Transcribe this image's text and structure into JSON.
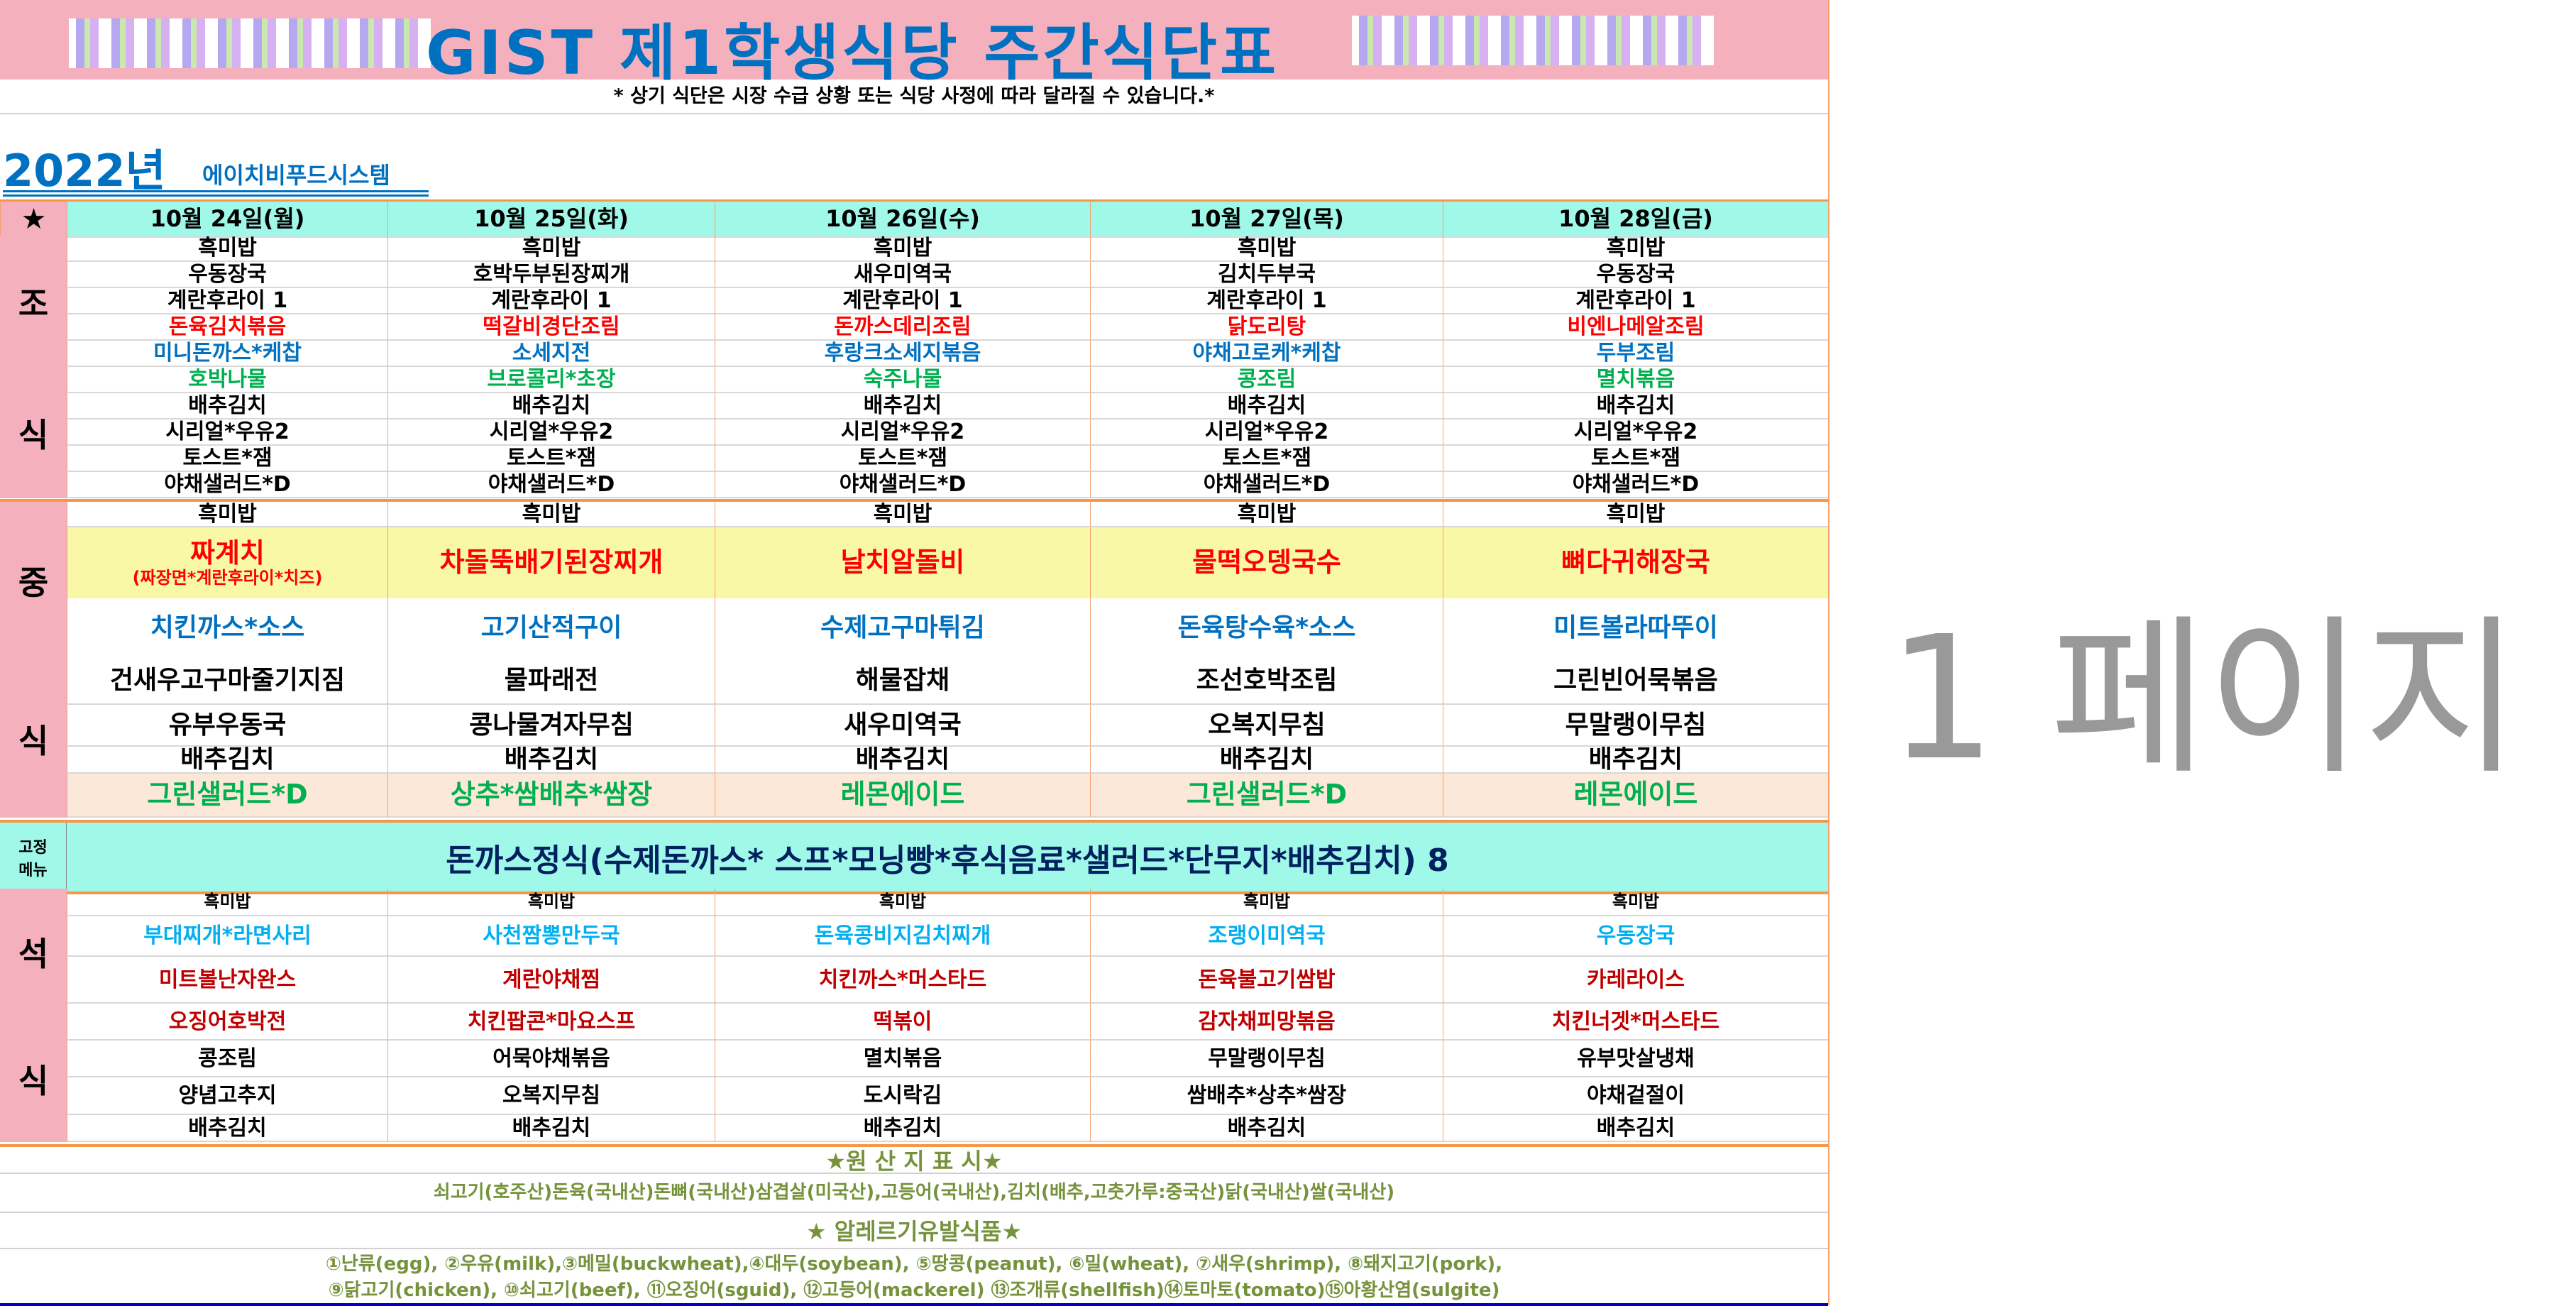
{
  "header": {
    "title": "GIST 제1학생식당 주간식단표",
    "note": "* 상기 식단은 시장 수급 상황 또는 식당 사정에 따라 달라질 수 있습니다.*",
    "year": "2022년",
    "company": "에이치비푸드시스템",
    "corner": "★"
  },
  "days": [
    "10월 24일(월)",
    "10월 25일(화)",
    "10월 26일(수)",
    "10월 27일(목)",
    "10월 28일(금)"
  ],
  "colors": {
    "black": "#000000",
    "red": "#ff0000",
    "blue": "#0070c0",
    "green": "#00b050",
    "sky": "#00b0f0",
    "darkred": "#c00000",
    "navy": "#002060",
    "pink": "#f4b0bc",
    "teal": "#a0f8e8",
    "yellow": "#f8f8a8",
    "peach": "#fce8d8"
  },
  "breakfast": {
    "label": [
      "조",
      "식"
    ],
    "rows": [
      {
        "color": "black",
        "items": [
          "흑미밥",
          "흑미밥",
          "흑미밥",
          "흑미밥",
          "흑미밥"
        ]
      },
      {
        "color": "black",
        "items": [
          "우동장국",
          "호박두부된장찌개",
          "새우미역국",
          "김치두부국",
          "우동장국"
        ]
      },
      {
        "color": "black",
        "items": [
          "계란후라이 1",
          "계란후라이 1",
          "계란후라이 1",
          "계란후라이 1",
          "계란후라이 1"
        ]
      },
      {
        "color": "red",
        "items": [
          "돈육김치볶음",
          "떡갈비경단조림",
          "돈까스데리조림",
          "닭도리탕",
          "비엔나메알조림"
        ]
      },
      {
        "color": "blue",
        "items": [
          "미니돈까스*케찹",
          "소세지전",
          "후랑크소세지볶음",
          "야채고로케*케찹",
          "두부조림"
        ]
      },
      {
        "color": "green",
        "items": [
          "호박나물",
          "브로콜리*초장",
          "숙주나물",
          "콩조림",
          "멸치볶음"
        ]
      },
      {
        "color": "black",
        "items": [
          "배추김치",
          "배추김치",
          "배추김치",
          "배추김치",
          "배추김치"
        ]
      },
      {
        "color": "black",
        "items": [
          "시리얼*우유2",
          "시리얼*우유2",
          "시리얼*우유2",
          "시리얼*우유2",
          "시리얼*우유2"
        ]
      },
      {
        "color": "black",
        "items": [
          "토스트*잼",
          "토스트*잼",
          "토스트*잼",
          "토스트*잼",
          "토스트*잼"
        ]
      },
      {
        "color": "black",
        "items": [
          "야채샐러드*D",
          "야채샐러드*D",
          "야채샐러드*D",
          "야채샐러드*D",
          "야채샐러드*D"
        ]
      }
    ]
  },
  "lunch": {
    "label": [
      "중",
      "식"
    ],
    "rows": [
      {
        "color": "black",
        "items": [
          "흑미밥",
          "흑미밥",
          "흑미밥",
          "흑미밥",
          "흑미밥"
        ]
      },
      {
        "color": "red",
        "bg": "yellow",
        "items": [
          "짜계치",
          "차돌뚝배기된장찌개",
          "날치알돌비",
          "물떡오뎅국수",
          "뼈다귀해장국"
        ],
        "subs": [
          "(짜장면*계란후라이*치즈)"
        ]
      },
      {
        "color": "blue",
        "items": [
          "치킨까스*소스",
          "고기산적구이",
          "수제고구마튀김",
          "돈육탕수육*소스",
          "미트볼라따뚜이"
        ]
      },
      {
        "color": "black",
        "items": [
          "건새우고구마줄기지짐",
          "물파래전",
          "해물잡채",
          "조선호박조림",
          "그린빈어묵볶음"
        ]
      },
      {
        "color": "black",
        "items": [
          "유부우동국",
          "콩나물겨자무침",
          "새우미역국",
          "오복지무침",
          "무말랭이무침"
        ]
      },
      {
        "color": "black",
        "items": [
          "배추김치",
          "배추김치",
          "배추김치",
          "배추김치",
          "배추김치"
        ]
      },
      {
        "color": "green",
        "bg": "peach",
        "items": [
          "그린샐러드*D",
          "상추*쌈배추*쌈장",
          "레몬에이드",
          "그린샐러드*D",
          "레몬에이드"
        ]
      }
    ]
  },
  "fixed_menu": {
    "label": [
      "고정",
      "메뉴"
    ],
    "text": "돈까스정식(수제돈까스* 스프*모닝빵*후식음료*샐러드*단무지*배추김치) 8"
  },
  "dinner": {
    "label": [
      "석",
      "식"
    ],
    "rows": [
      {
        "color": "black",
        "items": [
          "흑미밥",
          "흑미밥",
          "흑미밥",
          "흑미밥",
          "흑미밥"
        ]
      },
      {
        "color": "sky",
        "items": [
          "부대찌개*라면사리",
          "사천짬뽕만두국",
          "돈육콩비지김치찌개",
          "조랭이미역국",
          "우동장국"
        ]
      },
      {
        "color": "darkred",
        "items": [
          "미트볼난자완스",
          "계란야채찜",
          "치킨까스*머스타드",
          "돈육불고기쌈밥",
          "카레라이스"
        ]
      },
      {
        "color": "darkred",
        "items": [
          "오징어호박전",
          "치킨팝콘*마요스프",
          "떡볶이",
          "감자채피망볶음",
          "치킨너겟*머스타드"
        ]
      },
      {
        "color": "black",
        "items": [
          "콩조림",
          "어묵야채볶음",
          "멸치볶음",
          "무말랭이무침",
          "유부맛살냉채"
        ]
      },
      {
        "color": "black",
        "items": [
          "양념고추지",
          "오복지무침",
          "도시락김",
          "쌈배추*상추*쌈장",
          "야채겉절이"
        ]
      },
      {
        "color": "black",
        "items": [
          "배추김치",
          "배추김치",
          "배추김치",
          "배추김치",
          "배추김치"
        ]
      }
    ]
  },
  "footer": {
    "origin_title": "★원 산 지 표 시★",
    "origin_text": "쇠고기(호주산)돈육(국내산)돈뼈(국내산)삼겹살(미국산),고등어(국내산),김치(배추,고춧가루:중국산)닭(국내산)쌀(국내산)",
    "allergy_title": "★ 알레르기유발식품★",
    "allergy_line1": "①난류(egg), ②우유(milk),③메밀(buckwheat),④대두(soybean), ⑤땅콩(peanut), ⑥밀(wheat), ⑦새우(shrimp), ⑧돼지고기(pork),",
    "allergy_line2": "⑨닭고기(chicken), ⑩쇠고기(beef), ⑪오징어(sguid), ⑫고등어(mackerel) ⑬조개류(shellfish)⑭토마토(tomato)⑮아황산염(sulgite)"
  },
  "watermark": "1 페이지"
}
